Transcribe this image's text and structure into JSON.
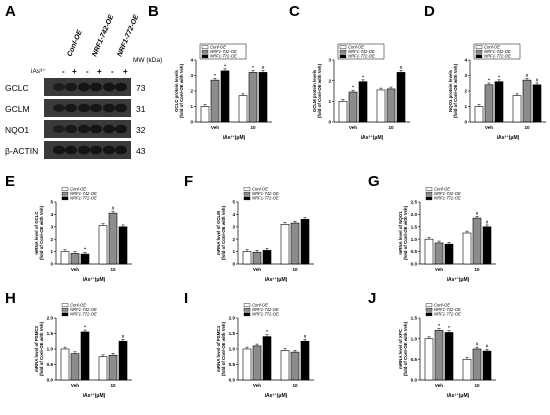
{
  "panel_letters": [
    "A",
    "B",
    "C",
    "D",
    "E",
    "F",
    "G",
    "H",
    "I",
    "J"
  ],
  "blot": {
    "lane_groups": [
      "Conl-OE",
      "NRF1-742-OE",
      "NRF1-772-OE"
    ],
    "treatment_label": "iAs³⁺",
    "treatment_signs": [
      "-",
      "+",
      "-",
      "+",
      "-",
      "+"
    ],
    "mw_header": "MW (kDa)",
    "bands": [
      {
        "name": "GCLC",
        "mw": "73"
      },
      {
        "name": "GCLM",
        "mw": "31"
      },
      {
        "name": "NQO1",
        "mw": "32"
      },
      {
        "name": "β-ACTIN",
        "mw": "43"
      }
    ]
  },
  "legend_sets": {
    "protein": [
      "Conl-OE",
      "NRF1-742-OE",
      "NRF1-772-OE"
    ],
    "mrna": [
      "Conl-OE",
      "NRF1-742-OE",
      "NRF1-772-OE"
    ]
  },
  "chart_data": [
    {
      "panel": "B",
      "type": "bar",
      "categories": [
        "Veh",
        "10"
      ],
      "ylim": [
        0,
        4
      ],
      "yticks": [
        "0",
        "1",
        "2",
        "3",
        "4"
      ],
      "ylabel": [
        "GCLC protein levels",
        "(fold of Conl-OE with Veh)"
      ],
      "xlabel": "iAs³⁺(μM)",
      "series": [
        {
          "name": "Conl-OE",
          "values": [
            1.0,
            1.7
          ]
        },
        {
          "name": "NRF1-742-OE",
          "values": [
            2.7,
            3.2
          ]
        },
        {
          "name": "NRF1-772-OE",
          "values": [
            3.3,
            3.2
          ]
        }
      ],
      "marks": [
        [
          "",
          ""
        ],
        [
          "*",
          "*"
        ],
        [
          "*",
          "#"
        ]
      ]
    },
    {
      "panel": "C",
      "type": "bar",
      "categories": [
        "Veh",
        "10"
      ],
      "ylim": [
        0,
        3
      ],
      "yticks": [
        "0",
        "1",
        "2",
        "3"
      ],
      "ylabel": [
        "GCLM protein levels",
        "(fold of Conl-OE with Veh)"
      ],
      "xlabel": "iAs³⁺(μM)",
      "series": [
        {
          "name": "Conl-OE",
          "values": [
            1.0,
            1.55
          ]
        },
        {
          "name": "NRF1-742-OE",
          "values": [
            1.45,
            1.6
          ]
        },
        {
          "name": "NRF1-772-OE",
          "values": [
            1.95,
            2.4
          ]
        }
      ],
      "marks": [
        [
          "",
          ""
        ],
        [
          "*",
          ""
        ],
        [
          "*",
          "#"
        ]
      ]
    },
    {
      "panel": "D",
      "type": "bar",
      "categories": [
        "Veh",
        "10"
      ],
      "ylim": [
        0,
        4
      ],
      "yticks": [
        "0",
        "1",
        "2",
        "3",
        "4"
      ],
      "ylabel": [
        "NQO1 protein levels",
        "(fold of Conl-OE with Veh)"
      ],
      "xlabel": "iAs³⁺(μM)",
      "series": [
        {
          "name": "Conl-OE",
          "values": [
            1.0,
            1.7
          ]
        },
        {
          "name": "NRF1-742-OE",
          "values": [
            2.4,
            2.7
          ]
        },
        {
          "name": "NRF1-772-OE",
          "values": [
            2.6,
            2.4
          ]
        }
      ],
      "marks": [
        [
          "",
          ""
        ],
        [
          "*",
          "#"
        ],
        [
          "*",
          "#"
        ]
      ]
    },
    {
      "panel": "E",
      "type": "bar",
      "categories": [
        "Veh",
        "10"
      ],
      "ylim": [
        0,
        5
      ],
      "yticks": [
        "0",
        "1",
        "2",
        "3",
        "4",
        "5"
      ],
      "ylabel": [
        "mRNA level of GCLC",
        "(fold of Conl-OE with Veh)"
      ],
      "xlabel": "iAs³⁺(μM)",
      "series": [
        {
          "name": "Conl-OE",
          "values": [
            1.0,
            3.1
          ]
        },
        {
          "name": "NRF1-742-OE",
          "values": [
            0.85,
            4.1
          ]
        },
        {
          "name": "NRF1-772-OE",
          "values": [
            0.8,
            3.0
          ]
        }
      ],
      "marks": [
        [
          "",
          ""
        ],
        [
          "",
          "#"
        ],
        [
          "*",
          ""
        ]
      ]
    },
    {
      "panel": "F",
      "type": "bar",
      "categories": [
        "Veh",
        "10"
      ],
      "ylim": [
        0,
        5
      ],
      "yticks": [
        "0",
        "1",
        "2",
        "3",
        "4",
        "5"
      ],
      "ylabel": [
        "mRNA level of GCLM",
        "(fold of Conl-OE with Veh)"
      ],
      "xlabel": "iAs³⁺(μM)",
      "series": [
        {
          "name": "Conl-OE",
          "values": [
            1.0,
            3.2
          ]
        },
        {
          "name": "NRF1-742-OE",
          "values": [
            0.95,
            3.3
          ]
        },
        {
          "name": "NRF1-772-OE",
          "values": [
            1.1,
            3.6
          ]
        }
      ],
      "marks": [
        [
          "",
          ""
        ],
        [
          "",
          ""
        ],
        [
          "",
          ""
        ]
      ]
    },
    {
      "panel": "G",
      "type": "bar",
      "categories": [
        "Veh",
        "10"
      ],
      "ylim": [
        0,
        2.5
      ],
      "yticks": [
        "0.0",
        "0.5",
        "1.0",
        "1.5",
        "2.0",
        "2.5"
      ],
      "ylabel": [
        "mRNA level of NQO1",
        "(fold of Conl-OE with Veh)"
      ],
      "xlabel": "iAs³⁺(μM)",
      "series": [
        {
          "name": "Conl-OE",
          "values": [
            1.0,
            1.25
          ]
        },
        {
          "name": "NRF1-742-OE",
          "values": [
            0.85,
            1.85
          ]
        },
        {
          "name": "NRF1-772-OE",
          "values": [
            0.8,
            1.5
          ]
        }
      ],
      "marks": [
        [
          "",
          ""
        ],
        [
          "",
          "#"
        ],
        [
          "",
          "#"
        ]
      ]
    },
    {
      "panel": "H",
      "type": "bar",
      "categories": [
        "Veh",
        "10"
      ],
      "ylim": [
        0,
        2
      ],
      "yticks": [
        "0.0",
        "0.5",
        "1.0",
        "1.5",
        "2.0"
      ],
      "ylabel": [
        "mRNA level of PSMC3",
        "(fold of Conl-OE with Veh)"
      ],
      "xlabel": "iAs³⁺(μM)",
      "series": [
        {
          "name": "Conl-OE",
          "values": [
            1.0,
            0.75
          ]
        },
        {
          "name": "NRF1-742-OE",
          "values": [
            0.85,
            0.8
          ]
        },
        {
          "name": "NRF1-772-OE",
          "values": [
            1.55,
            1.25
          ]
        }
      ],
      "marks": [
        [
          "",
          ""
        ],
        [
          "",
          ""
        ],
        [
          "*",
          "#"
        ]
      ]
    },
    {
      "panel": "I",
      "type": "bar",
      "categories": [
        "Veh",
        "10"
      ],
      "ylim": [
        0,
        2
      ],
      "yticks": [
        "0.0",
        "0.5",
        "1.0",
        "1.5",
        "2.0"
      ],
      "ylabel": [
        "mRNA level of PSMC4",
        "(fold of Conl-OE with Veh)"
      ],
      "xlabel": "iAs³⁺(μM)",
      "series": [
        {
          "name": "Conl-OE",
          "values": [
            1.0,
            0.95
          ]
        },
        {
          "name": "NRF1-742-OE",
          "values": [
            1.1,
            0.9
          ]
        },
        {
          "name": "NRF1-772-OE",
          "values": [
            1.4,
            1.25
          ]
        }
      ],
      "marks": [
        [
          "",
          ""
        ],
        [
          "",
          ""
        ],
        [
          "*",
          "#"
        ]
      ]
    },
    {
      "panel": "J",
      "type": "bar",
      "categories": [
        "Veh",
        "10"
      ],
      "ylim": [
        0,
        1.5
      ],
      "yticks": [
        "0.0",
        "0.5",
        "1.0",
        "1.5"
      ],
      "ylabel": [
        "mRNA level of XPC",
        "(fold of Conl-OE with Veh)"
      ],
      "xlabel": "iAs³⁺(μM)",
      "series": [
        {
          "name": "Conl-OE",
          "values": [
            1.0,
            0.5
          ]
        },
        {
          "name": "NRF1-742-OE",
          "values": [
            1.2,
            0.75
          ]
        },
        {
          "name": "NRF1-772-OE",
          "values": [
            1.15,
            0.7
          ]
        }
      ],
      "marks": [
        [
          "",
          ""
        ],
        [
          "*",
          "#"
        ],
        [
          "*",
          "#"
        ]
      ]
    }
  ],
  "colors": {
    "series": [
      "#ffffff",
      "#8c8c8c",
      "#000000"
    ],
    "stroke": "#000000",
    "blot_bg": "#3a3a3a",
    "band": "#141414"
  }
}
